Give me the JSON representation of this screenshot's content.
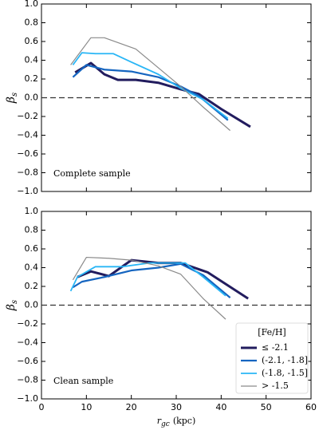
{
  "chart_data": [
    {
      "type": "line",
      "ylabel": {
        "symbol": "β",
        "subscript": "s"
      },
      "annotation": "Complete sample",
      "xlim": [
        0,
        60
      ],
      "xticks": [
        0,
        10,
        20,
        30,
        40,
        50,
        60
      ],
      "show_xtick_labels": false,
      "ylim": [
        -1,
        1
      ],
      "yticks": [
        {
          "value": -1,
          "label": "−1.0"
        },
        {
          "value": -0.8,
          "label": "−0.8"
        },
        {
          "value": -0.6,
          "label": "−0.6"
        },
        {
          "value": -0.4,
          "label": "−0.4"
        },
        {
          "value": -0.2,
          "label": "−0.2"
        },
        {
          "value": 0,
          "label": "0.0"
        },
        {
          "value": 0.2,
          "label": "0.2"
        },
        {
          "value": 0.4,
          "label": "0.4"
        },
        {
          "value": 0.6,
          "label": "0.6"
        },
        {
          "value": 0.8,
          "label": "0.8"
        },
        {
          "value": 1,
          "label": "1.0"
        }
      ],
      "reference_line": {
        "y": 0,
        "style": "dashed"
      },
      "series": [
        {
          "name": "≤ -2.1",
          "color": "#221c5e",
          "width": 3,
          "x": [
            7.5,
            11,
            14,
            17,
            21,
            26,
            31,
            35,
            40,
            46.5
          ],
          "values": [
            0.27,
            0.37,
            0.25,
            0.19,
            0.19,
            0.16,
            0.09,
            0.04,
            -0.12,
            -0.31
          ]
        },
        {
          "name": "(-2.1, -1.8]",
          "color": "#1565c0",
          "width": 2.2,
          "x": [
            7,
            10,
            14,
            20,
            26,
            31,
            35,
            41.5
          ],
          "values": [
            0.22,
            0.35,
            0.3,
            0.28,
            0.22,
            0.12,
            0.02,
            -0.24
          ]
        },
        {
          "name": "(-1.8, -1.5]",
          "color": "#29b6f6",
          "width": 1.8,
          "x": [
            7,
            9,
            12,
            16,
            20,
            26,
            31,
            36,
            41.5
          ],
          "values": [
            0.35,
            0.48,
            0.47,
            0.47,
            0.38,
            0.25,
            0.1,
            -0.02,
            -0.22
          ]
        },
        {
          "name": "> -1.5",
          "color": "#8a8a8a",
          "width": 1.2,
          "x": [
            6.5,
            11,
            14,
            21,
            26,
            31,
            36,
            42
          ],
          "values": [
            0.35,
            0.64,
            0.64,
            0.52,
            0.32,
            0.12,
            -0.1,
            -0.35
          ]
        }
      ]
    },
    {
      "type": "line",
      "ylabel": {
        "symbol": "β",
        "subscript": "s"
      },
      "xlabel": {
        "symbol": "r",
        "subscript": "gc",
        "unit": "(kpc)"
      },
      "annotation": "Clean sample",
      "xlim": [
        0,
        60
      ],
      "xticks": [
        0,
        10,
        20,
        30,
        40,
        50,
        60
      ],
      "show_xtick_labels": true,
      "ylim": [
        -1,
        1
      ],
      "yticks": [
        {
          "value": -1,
          "label": "−1.0"
        },
        {
          "value": -0.8,
          "label": "−0.8"
        },
        {
          "value": -0.6,
          "label": "−0.6"
        },
        {
          "value": -0.4,
          "label": "−0.4"
        },
        {
          "value": -0.2,
          "label": "−0.2"
        },
        {
          "value": 0,
          "label": "0.0"
        },
        {
          "value": 0.2,
          "label": "0.2"
        },
        {
          "value": 0.4,
          "label": "0.4"
        },
        {
          "value": 0.6,
          "label": "0.6"
        },
        {
          "value": 0.8,
          "label": "0.8"
        },
        {
          "value": 1,
          "label": "1.0"
        }
      ],
      "reference_line": {
        "y": 0,
        "style": "dashed"
      },
      "legend": {
        "title": "[Fe/H]",
        "position": "lower right"
      },
      "series": [
        {
          "name": "≤ -2.1",
          "color": "#221c5e",
          "width": 3,
          "x": [
            8,
            11,
            15,
            20,
            26,
            31,
            37,
            46
          ],
          "values": [
            0.3,
            0.36,
            0.31,
            0.48,
            0.45,
            0.45,
            0.35,
            0.07
          ]
        },
        {
          "name": "(-2.1, -1.8]",
          "color": "#1565c0",
          "width": 2.2,
          "x": [
            7,
            9,
            14,
            20,
            26,
            31,
            36,
            42
          ],
          "values": [
            0.19,
            0.25,
            0.3,
            0.37,
            0.4,
            0.44,
            0.32,
            0.08
          ]
        },
        {
          "name": "(-1.8, -1.5]",
          "color": "#29b6f6",
          "width": 1.8,
          "x": [
            6.5,
            8,
            12,
            18,
            24,
            29,
            32,
            36,
            41
          ],
          "values": [
            0.15,
            0.3,
            0.41,
            0.41,
            0.45,
            0.45,
            0.45,
            0.3,
            0.1
          ]
        },
        {
          "name": "> -1.5",
          "color": "#8a8a8a",
          "width": 1.2,
          "x": [
            7,
            10,
            15,
            20,
            26,
            31,
            36,
            41
          ],
          "values": [
            0.27,
            0.51,
            0.5,
            0.48,
            0.42,
            0.33,
            0.07,
            -0.15
          ]
        }
      ]
    }
  ]
}
